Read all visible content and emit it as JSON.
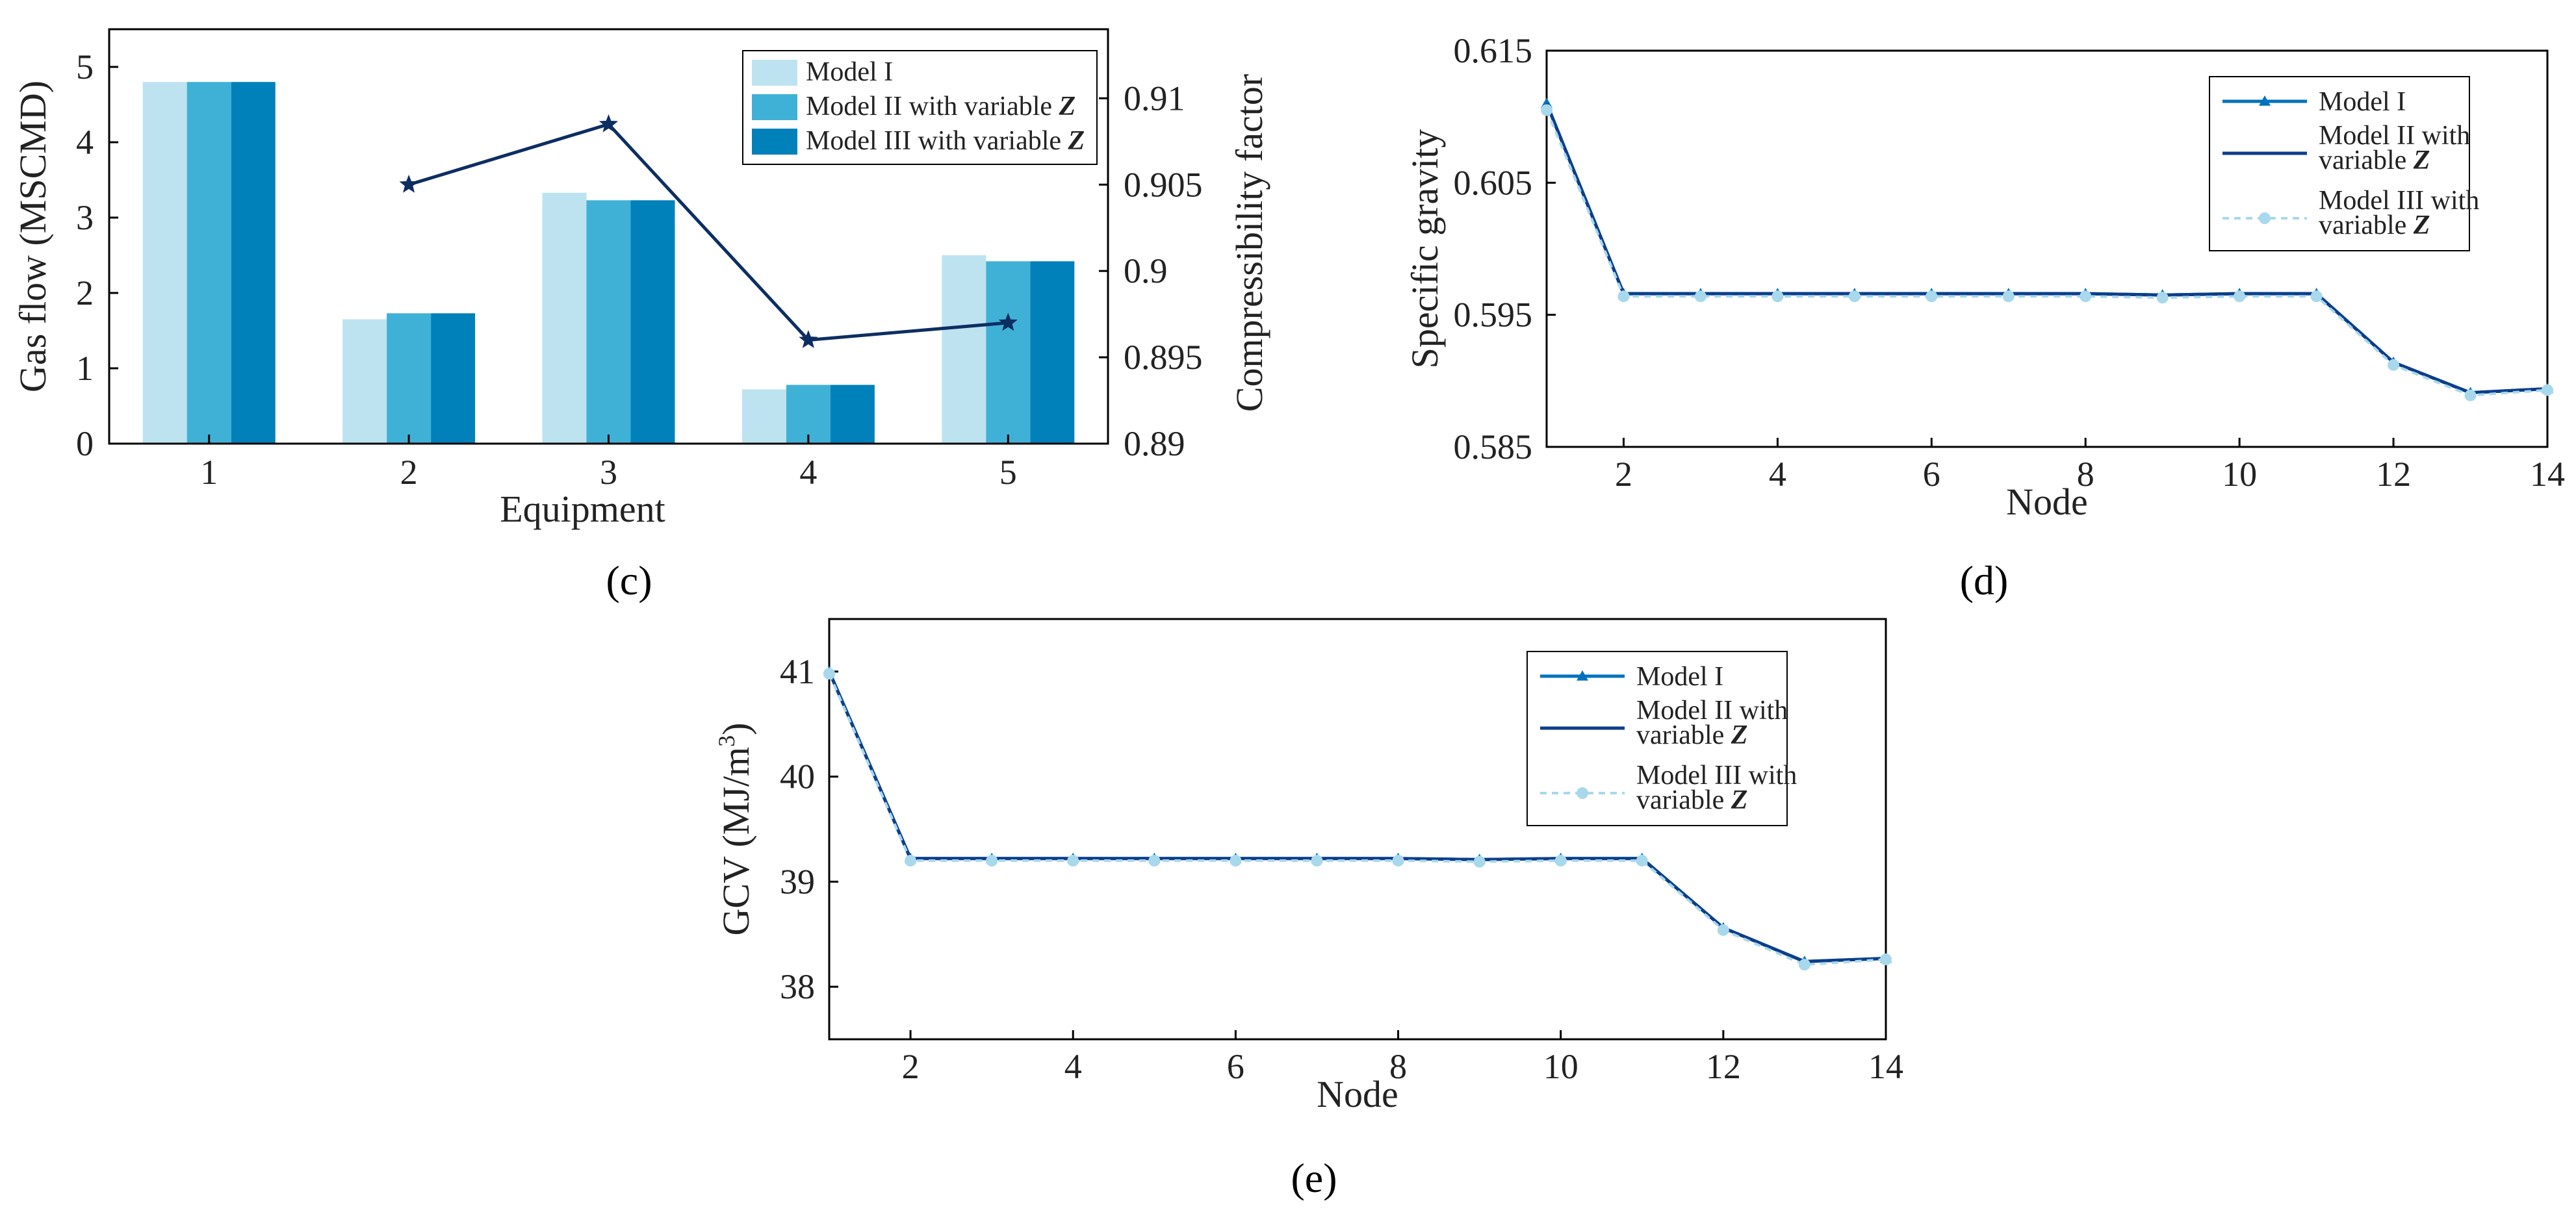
{
  "chart_data": [
    {
      "id": "c",
      "panel_label": "(c)",
      "type": "bar",
      "xlabel": "Equipment",
      "ylabel": "Gas flow (MSCMD)",
      "y2label": "Compressibility factor",
      "categories": [
        "1",
        "2",
        "3",
        "4",
        "5"
      ],
      "ylim": [
        0,
        5.5
      ],
      "yticks": [
        0,
        1,
        2,
        3,
        4,
        5
      ],
      "y2lim": [
        0.89,
        0.914
      ],
      "y2ticks": [
        0.89,
        0.895,
        0.9,
        0.905,
        0.91
      ],
      "y2ticklabels": [
        "0.89",
        "0.895",
        "0.9",
        "0.905",
        "0.91"
      ],
      "series": [
        {
          "name": "Model I",
          "values": [
            4.8,
            1.65,
            3.33,
            0.72,
            2.5
          ],
          "color": "#bde3f0"
        },
        {
          "name": "Model II with variable Z",
          "values": [
            4.8,
            1.73,
            3.23,
            0.78,
            2.42
          ],
          "color": "#40b1d6"
        },
        {
          "name": "Model III with variable Z",
          "values": [
            4.8,
            1.73,
            3.23,
            0.78,
            2.42
          ],
          "color": "#0081b9"
        }
      ],
      "legend_labels": [
        "Model I",
        "Model II with variable ",
        "Model III with variable "
      ],
      "legend_italic": "Z",
      "line_series": {
        "name": "Compressibility factor",
        "x": [
          "2",
          "3",
          "4",
          "5"
        ],
        "values": [
          0.905,
          0.9085,
          0.896,
          0.897
        ],
        "color": "#0d2e63"
      }
    },
    {
      "id": "d",
      "panel_label": "(d)",
      "type": "line",
      "xlabel": "Node",
      "ylabel": "Specific gravity",
      "xlim": [
        1,
        14
      ],
      "xticks": [
        2,
        4,
        6,
        8,
        10,
        12,
        14
      ],
      "ylim": [
        0.585,
        0.615
      ],
      "yticks": [
        0.585,
        0.595,
        0.605,
        0.615
      ],
      "x": [
        1,
        2,
        3,
        4,
        5,
        6,
        7,
        8,
        9,
        10,
        11,
        12,
        13,
        14
      ],
      "series": [
        {
          "name": "Model I",
          "values": [
            0.611,
            0.5966,
            0.5966,
            0.5966,
            0.5966,
            0.5966,
            0.5966,
            0.5966,
            0.5965,
            0.5966,
            0.5966,
            0.5914,
            0.5891,
            0.5894
          ],
          "color": "#0072bd"
        },
        {
          "name": "Model II with variable Z",
          "values": [
            0.611,
            0.5966,
            0.5966,
            0.5966,
            0.5966,
            0.5966,
            0.5966,
            0.5966,
            0.5965,
            0.5966,
            0.5966,
            0.5914,
            0.5891,
            0.5894
          ],
          "color": "#0d3e8a"
        },
        {
          "name": "Model III with variable Z",
          "values": [
            0.6105,
            0.5964,
            0.5964,
            0.5964,
            0.5964,
            0.5964,
            0.5964,
            0.5964,
            0.5963,
            0.5964,
            0.5964,
            0.5912,
            0.5889,
            0.5893
          ],
          "color": "#a8d8ec"
        }
      ],
      "legend_lines": [
        [
          "Model I"
        ],
        [
          "Model II with",
          "variable "
        ],
        [
          "Model III with",
          "variable "
        ]
      ],
      "legend_italic": "Z"
    },
    {
      "id": "e",
      "panel_label": "(e)",
      "type": "line",
      "xlabel": "Node",
      "ylabel": "GCV (MJ/m",
      "ylabel_sup": "3",
      "ylabel_end": ")",
      "xlim": [
        1,
        14
      ],
      "xticks": [
        2,
        4,
        6,
        8,
        10,
        12,
        14
      ],
      "ylim": [
        37.5,
        41.5
      ],
      "yticks": [
        38,
        39,
        40,
        41
      ],
      "x": [
        1,
        2,
        3,
        4,
        5,
        6,
        7,
        8,
        9,
        10,
        11,
        12,
        13,
        14
      ],
      "series": [
        {
          "name": "Model I",
          "values": [
            41.0,
            39.22,
            39.22,
            39.22,
            39.22,
            39.22,
            39.22,
            39.22,
            39.21,
            39.22,
            39.22,
            38.56,
            38.24,
            38.27
          ],
          "color": "#0072bd"
        },
        {
          "name": "Model II with variable Z",
          "values": [
            41.0,
            39.22,
            39.22,
            39.22,
            39.22,
            39.22,
            39.22,
            39.22,
            39.21,
            39.22,
            39.22,
            38.56,
            38.24,
            38.27
          ],
          "color": "#0d3e8a"
        },
        {
          "name": "Model III with variable Z",
          "values": [
            40.98,
            39.2,
            39.2,
            39.2,
            39.2,
            39.2,
            39.2,
            39.2,
            39.19,
            39.2,
            39.2,
            38.54,
            38.21,
            38.26
          ],
          "color": "#a8d8ec"
        }
      ],
      "legend_lines": [
        [
          "Model I"
        ],
        [
          "Model II with",
          "variable "
        ],
        [
          "Model III with",
          "variable "
        ]
      ],
      "legend_italic": "Z"
    }
  ]
}
